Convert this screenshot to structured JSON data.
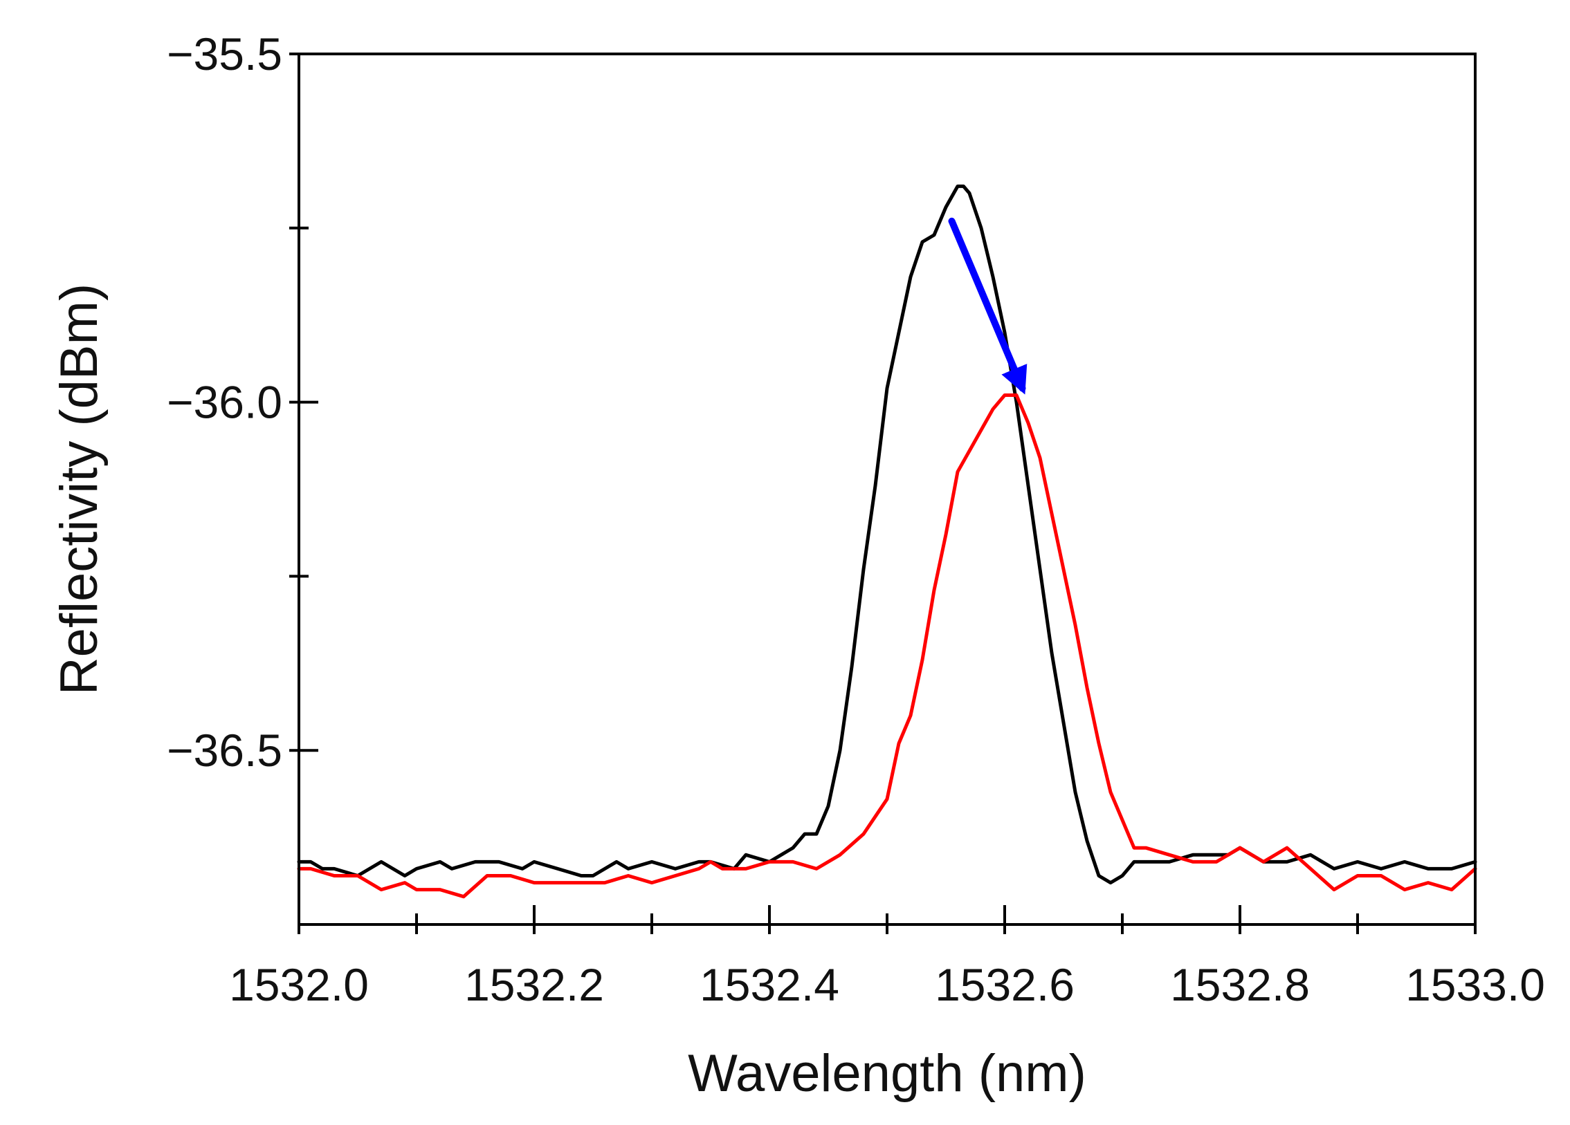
{
  "chart_data": {
    "type": "line",
    "title": "",
    "xlabel": "Wavelength (nm)",
    "ylabel": "Reflectivity (dBm)",
    "xlim": [
      1532.0,
      1533.0
    ],
    "ylim": [
      -36.75,
      -35.5
    ],
    "x_ticks": [
      1532.0,
      1532.2,
      1532.4,
      1532.6,
      1532.8,
      1533.0
    ],
    "x_tick_labels": [
      "1532.0",
      "1532.2",
      "1532.4",
      "1532.6",
      "1532.8",
      "1533.0"
    ],
    "x_minor_ticks": [
      1532.1,
      1532.3,
      1532.5,
      1532.7,
      1532.9
    ],
    "y_ticks": [
      -35.5,
      -36.0,
      -36.5
    ],
    "y_tick_labels": [
      "−35.5",
      "−36.0",
      "−36.5"
    ],
    "y_minor_ticks": [
      -35.75,
      -36.25
    ],
    "grid": false,
    "legend": "none",
    "series": [
      {
        "color": "#000000",
        "x": [
          1532.0,
          1532.01,
          1532.02,
          1532.03,
          1532.05,
          1532.07,
          1532.09,
          1532.1,
          1532.12,
          1532.13,
          1532.15,
          1532.17,
          1532.19,
          1532.2,
          1532.22,
          1532.24,
          1532.25,
          1532.27,
          1532.28,
          1532.3,
          1532.32,
          1532.34,
          1532.35,
          1532.37,
          1532.38,
          1532.4,
          1532.41,
          1532.42,
          1532.43,
          1532.44,
          1532.45,
          1532.46,
          1532.47,
          1532.48,
          1532.49,
          1532.5,
          1532.51,
          1532.52,
          1532.53,
          1532.54,
          1532.55,
          1532.56,
          1532.565,
          1532.57,
          1532.58,
          1532.59,
          1532.6,
          1532.61,
          1532.62,
          1532.63,
          1532.64,
          1532.65,
          1532.66,
          1532.67,
          1532.68,
          1532.69,
          1532.7,
          1532.71,
          1532.72,
          1532.74,
          1532.76,
          1532.78,
          1532.79,
          1532.8,
          1532.82,
          1532.84,
          1532.86,
          1532.88,
          1532.9,
          1532.92,
          1532.94,
          1532.96,
          1532.98,
          1533.0
        ],
        "y": [
          -36.66,
          -36.66,
          -36.67,
          -36.67,
          -36.68,
          -36.66,
          -36.68,
          -36.67,
          -36.66,
          -36.67,
          -36.66,
          -36.66,
          -36.67,
          -36.66,
          -36.67,
          -36.68,
          -36.68,
          -36.66,
          -36.67,
          -36.66,
          -36.67,
          -36.66,
          -36.66,
          -36.67,
          -36.65,
          -36.66,
          -36.65,
          -36.64,
          -36.62,
          -36.62,
          -36.58,
          -36.5,
          -36.38,
          -36.24,
          -36.12,
          -35.98,
          -35.9,
          -35.82,
          -35.77,
          -35.76,
          -35.72,
          -35.69,
          -35.69,
          -35.7,
          -35.75,
          -35.82,
          -35.9,
          -36.0,
          -36.12,
          -36.24,
          -36.36,
          -36.46,
          -36.56,
          -36.63,
          -36.68,
          -36.69,
          -36.68,
          -36.66,
          -36.66,
          -36.66,
          -36.65,
          -36.65,
          -36.65,
          -36.64,
          -36.66,
          -36.66,
          -36.65,
          -36.67,
          -36.66,
          -36.67,
          -36.66,
          -36.67,
          -36.67,
          -36.66
        ]
      },
      {
        "color": "#ff0000",
        "x": [
          1532.0,
          1532.01,
          1532.03,
          1532.05,
          1532.07,
          1532.09,
          1532.1,
          1532.12,
          1532.14,
          1532.16,
          1532.18,
          1532.2,
          1532.22,
          1532.24,
          1532.26,
          1532.28,
          1532.3,
          1532.32,
          1532.34,
          1532.35,
          1532.36,
          1532.38,
          1532.4,
          1532.42,
          1532.44,
          1532.46,
          1532.48,
          1532.5,
          1532.51,
          1532.52,
          1532.53,
          1532.54,
          1532.55,
          1532.56,
          1532.57,
          1532.58,
          1532.59,
          1532.6,
          1532.61,
          1532.62,
          1532.63,
          1532.64,
          1532.65,
          1532.66,
          1532.67,
          1532.68,
          1532.69,
          1532.7,
          1532.71,
          1532.72,
          1532.74,
          1532.76,
          1532.78,
          1532.8,
          1532.82,
          1532.84,
          1532.86,
          1532.88,
          1532.9,
          1532.92,
          1532.94,
          1532.96,
          1532.98,
          1533.0
        ],
        "y": [
          -36.67,
          -36.67,
          -36.68,
          -36.68,
          -36.7,
          -36.69,
          -36.7,
          -36.7,
          -36.71,
          -36.68,
          -36.68,
          -36.69,
          -36.69,
          -36.69,
          -36.69,
          -36.68,
          -36.69,
          -36.68,
          -36.67,
          -36.66,
          -36.67,
          -36.67,
          -36.66,
          -36.66,
          -36.67,
          -36.65,
          -36.62,
          -36.57,
          -36.49,
          -36.45,
          -36.37,
          -36.27,
          -36.19,
          -36.1,
          -36.07,
          -36.04,
          -36.01,
          -35.99,
          -35.99,
          -36.03,
          -36.08,
          -36.16,
          -36.24,
          -36.32,
          -36.41,
          -36.49,
          -36.56,
          -36.6,
          -36.64,
          -36.64,
          -36.65,
          -36.66,
          -36.66,
          -36.64,
          -36.66,
          -36.64,
          -36.67,
          -36.7,
          -36.68,
          -36.68,
          -36.7,
          -36.69,
          -36.7,
          -36.67
        ]
      }
    ],
    "annotations": [
      {
        "type": "arrow",
        "color": "#0000ff",
        "from": [
          1532.555,
          -35.74
        ],
        "to": [
          1532.615,
          -35.98
        ]
      }
    ]
  }
}
